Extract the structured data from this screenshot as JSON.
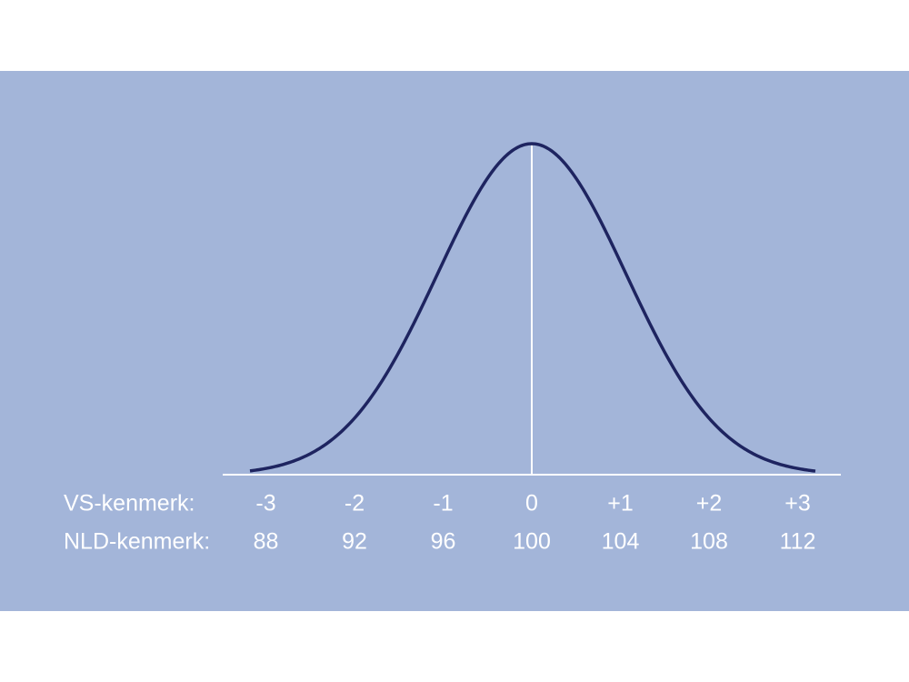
{
  "rows": [
    {
      "label": "VS-kenmerk:",
      "values": [
        "-3",
        "-2",
        "-1",
        "0",
        "+1",
        "+2",
        "+3"
      ]
    },
    {
      "label": "NLD-kenmerk:",
      "values": [
        "88",
        "92",
        "96",
        "100",
        "104",
        "108",
        "112"
      ]
    }
  ]
}
